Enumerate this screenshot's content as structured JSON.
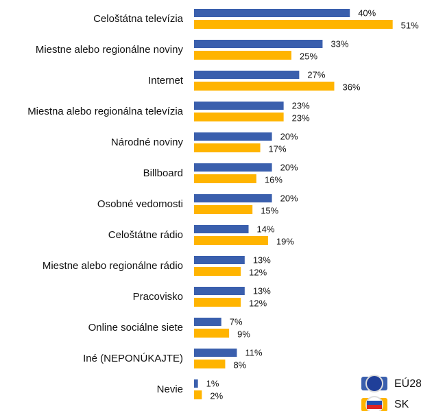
{
  "chart_data": {
    "type": "bar",
    "orientation": "horizontal",
    "categories": [
      "Celoštátna televízia",
      "Miestne alebo regionálne noviny",
      "Internet",
      "Miestna alebo regionálna televízia",
      "Národné noviny",
      "Billboard",
      "Osobné vedomosti",
      "Celoštátne rádio",
      "Miestne alebo regionálne rádio",
      "Pracovisko",
      "Online sociálne siete",
      "Iné (NEPONÚKAJTE)",
      "Nevie"
    ],
    "series": [
      {
        "name": "EÚ28",
        "color": "#3a5fad",
        "values": [
          40,
          33,
          27,
          23,
          20,
          20,
          20,
          14,
          13,
          13,
          7,
          11,
          1
        ],
        "value_labels": [
          "40%",
          "33%",
          "27%",
          "23%",
          "20%",
          "20%",
          "20%",
          "14%",
          "13%",
          "13%",
          "7%",
          "11%",
          "1%"
        ]
      },
      {
        "name": "SK",
        "color": "#ffb400",
        "values": [
          51,
          25,
          36,
          23,
          17,
          16,
          15,
          19,
          12,
          12,
          9,
          8,
          2
        ],
        "value_labels": [
          "51%",
          "25%",
          "36%",
          "23%",
          "17%",
          "16%",
          "15%",
          "19%",
          "12%",
          "12%",
          "9%",
          "8%",
          "2%"
        ]
      }
    ],
    "legend": "bottom-right"
  }
}
